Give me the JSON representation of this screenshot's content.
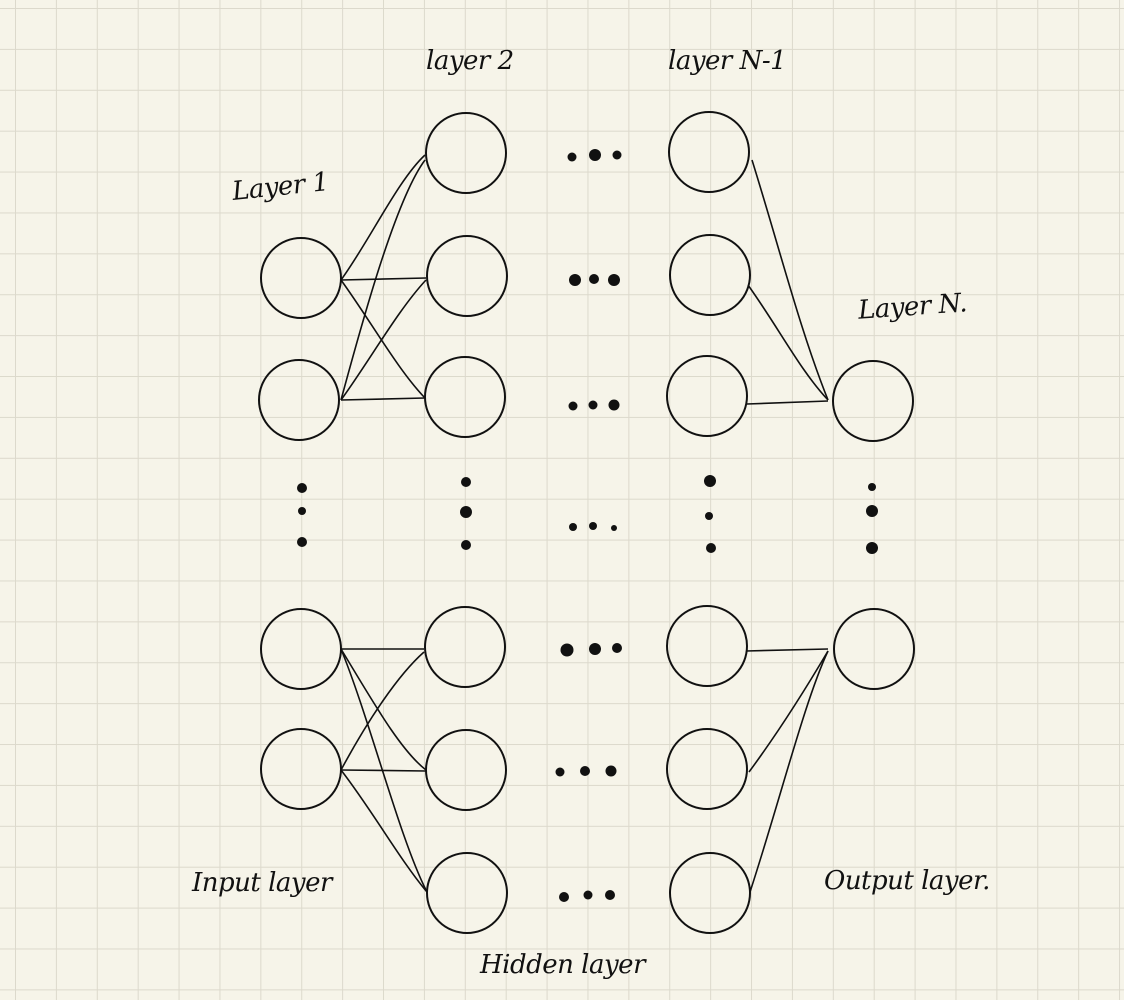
{
  "labels": {
    "layer1": "Layer 1",
    "layer2": "layer 2",
    "layerN1": "layer N-1",
    "layerN": "Layer N.",
    "input": "Input layer",
    "hidden": "Hidden layer",
    "output": "Output layer."
  }
}
